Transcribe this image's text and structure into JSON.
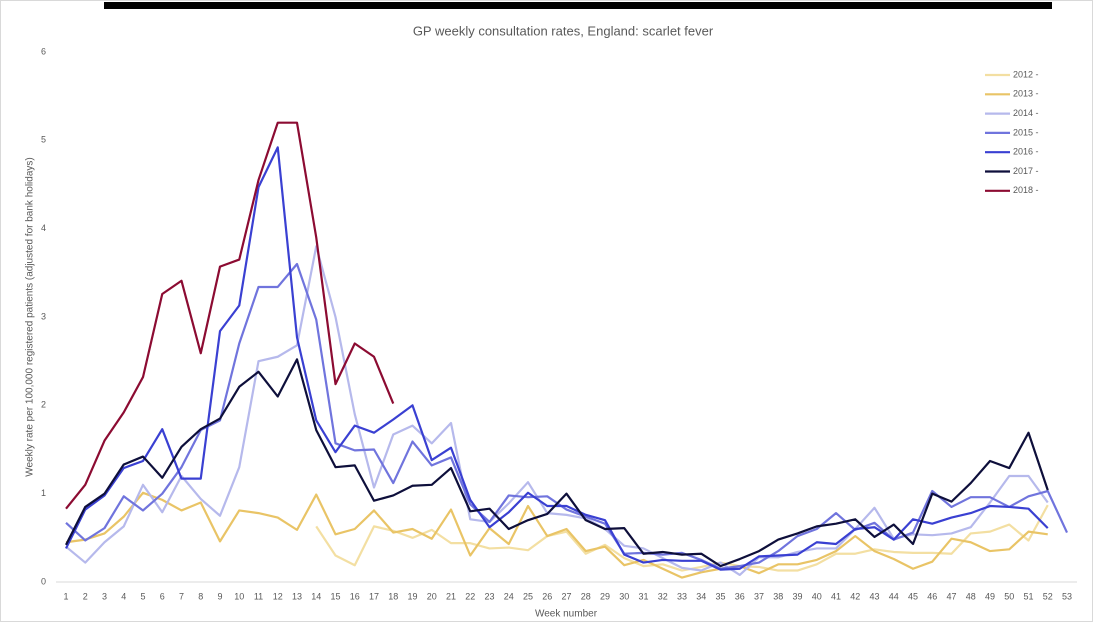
{
  "chart_data": {
    "type": "line",
    "title": "GP weekly consultation rates, England: scarlet fever",
    "x_label": "Week number",
    "y_label": "Weekly rate per 100,000 registered patients (adjusted for bank holidays)",
    "categories": [
      "1",
      "2",
      "3",
      "4",
      "5",
      "6",
      "7",
      "8",
      "9",
      "10",
      "11",
      "12",
      "13",
      "14",
      "15",
      "16",
      "17",
      "18",
      "19",
      "20",
      "21",
      "22",
      "23",
      "24",
      "25",
      "26",
      "27",
      "28",
      "29",
      "30",
      "31",
      "32",
      "33",
      "34",
      "35",
      "36",
      "37",
      "38",
      "39",
      "40",
      "41",
      "42",
      "43",
      "44",
      "45",
      "46",
      "47",
      "48",
      "49",
      "50",
      "51",
      "52",
      "53"
    ],
    "ylim": [
      0,
      6
    ],
    "yticks": [
      0,
      1,
      2,
      3,
      4,
      5,
      6
    ],
    "grid": false,
    "legend": "top-right",
    "series": [
      {
        "name": "2012 -",
        "color": "#f3dfa2",
        "values": [
          null,
          null,
          null,
          null,
          null,
          null,
          null,
          null,
          null,
          null,
          null,
          null,
          null,
          0.63,
          0.3,
          0.19,
          0.63,
          0.58,
          0.5,
          0.59,
          0.44,
          0.44,
          0.38,
          0.39,
          0.36,
          0.52,
          0.57,
          0.32,
          0.42,
          0.27,
          0.18,
          0.2,
          0.13,
          0.17,
          0.22,
          0.18,
          0.17,
          0.13,
          0.13,
          0.2,
          0.32,
          0.32,
          0.37,
          0.34,
          0.33,
          0.33,
          0.32,
          0.55,
          0.57,
          0.65,
          0.47,
          0.87,
          null
        ]
      },
      {
        "name": "2013 -",
        "color": "#e9c466",
        "values": [
          0.45,
          0.48,
          0.55,
          0.74,
          1.01,
          0.93,
          0.81,
          0.9,
          0.46,
          0.81,
          0.78,
          0.73,
          0.59,
          0.99,
          0.54,
          0.6,
          0.81,
          0.56,
          0.6,
          0.49,
          0.82,
          0.3,
          0.61,
          0.43,
          0.86,
          0.52,
          0.6,
          0.35,
          0.4,
          0.19,
          0.25,
          0.15,
          0.05,
          0.11,
          0.15,
          0.18,
          0.1,
          0.2,
          0.2,
          0.25,
          0.35,
          0.52,
          0.35,
          0.26,
          0.15,
          0.23,
          0.49,
          0.45,
          0.35,
          0.37,
          0.57,
          0.54,
          null
        ]
      },
      {
        "name": "2014 -",
        "color": "#b6b9ec",
        "values": [
          0.4,
          0.22,
          0.45,
          0.63,
          1.1,
          0.79,
          1.2,
          0.94,
          0.75,
          1.3,
          2.5,
          2.55,
          2.68,
          3.8,
          3.0,
          1.9,
          1.07,
          1.67,
          1.77,
          1.57,
          1.8,
          0.71,
          0.68,
          0.89,
          1.13,
          0.78,
          0.76,
          0.72,
          0.6,
          0.41,
          0.38,
          0.27,
          0.16,
          0.13,
          0.22,
          0.08,
          0.28,
          0.28,
          0.34,
          0.38,
          0.38,
          0.6,
          0.84,
          0.49,
          0.54,
          0.53,
          0.55,
          0.62,
          0.9,
          1.2,
          1.2,
          0.9,
          null
        ]
      },
      {
        "name": "2015 -",
        "color": "#7074dd",
        "values": [
          0.67,
          0.47,
          0.61,
          0.97,
          0.81,
          1.0,
          1.3,
          1.72,
          1.83,
          2.7,
          3.34,
          3.34,
          3.6,
          2.97,
          1.57,
          1.49,
          1.5,
          1.12,
          1.59,
          1.32,
          1.41,
          0.88,
          0.68,
          0.98,
          0.96,
          0.97,
          0.82,
          0.74,
          0.66,
          0.32,
          0.33,
          0.31,
          0.33,
          0.25,
          0.15,
          0.18,
          0.22,
          0.35,
          0.52,
          0.6,
          0.78,
          0.59,
          0.67,
          0.48,
          0.56,
          1.03,
          0.85,
          0.96,
          0.96,
          0.85,
          0.97,
          1.03,
          0.56
        ]
      },
      {
        "name": "2016 -",
        "color": "#3a40d2",
        "values": [
          0.38,
          0.82,
          0.98,
          1.29,
          1.37,
          1.73,
          1.17,
          1.17,
          2.84,
          3.13,
          4.47,
          4.92,
          2.77,
          1.83,
          1.47,
          1.77,
          1.69,
          1.84,
          2.0,
          1.38,
          1.52,
          0.93,
          0.62,
          0.79,
          1.01,
          0.86,
          0.86,
          0.76,
          0.7,
          0.31,
          0.22,
          0.25,
          0.24,
          0.24,
          0.14,
          0.15,
          0.29,
          0.3,
          0.31,
          0.45,
          0.43,
          0.6,
          0.62,
          0.48,
          0.71,
          0.66,
          0.73,
          0.78,
          0.86,
          0.85,
          0.83,
          0.61,
          null
        ]
      },
      {
        "name": "2017 -",
        "color": "#0e0f3b",
        "values": [
          0.42,
          0.85,
          1.0,
          1.33,
          1.42,
          1.18,
          1.53,
          1.73,
          1.85,
          2.21,
          2.38,
          2.1,
          2.52,
          1.72,
          1.3,
          1.32,
          0.92,
          0.98,
          1.09,
          1.1,
          1.29,
          0.8,
          0.83,
          0.6,
          0.7,
          0.77,
          1.0,
          0.7,
          0.6,
          0.61,
          0.32,
          0.34,
          0.31,
          0.32,
          0.18,
          0.26,
          0.35,
          0.48,
          0.55,
          0.63,
          0.66,
          0.71,
          0.51,
          0.65,
          0.43,
          1.0,
          0.91,
          1.12,
          1.37,
          1.29,
          1.69,
          1.04,
          null
        ]
      },
      {
        "name": "2018 -",
        "color": "#8c0b32",
        "values": [
          0.83,
          1.1,
          1.6,
          1.92,
          2.32,
          3.26,
          3.41,
          2.59,
          3.57,
          3.65,
          4.55,
          5.2,
          5.2,
          3.9,
          2.24,
          2.7,
          2.55,
          2.02,
          null,
          null,
          null,
          null,
          null,
          null,
          null,
          null,
          null,
          null,
          null,
          null,
          null,
          null,
          null,
          null,
          null,
          null,
          null,
          null,
          null,
          null,
          null,
          null,
          null,
          null,
          null,
          null,
          null,
          null,
          null,
          null,
          null,
          null,
          null
        ]
      }
    ]
  }
}
